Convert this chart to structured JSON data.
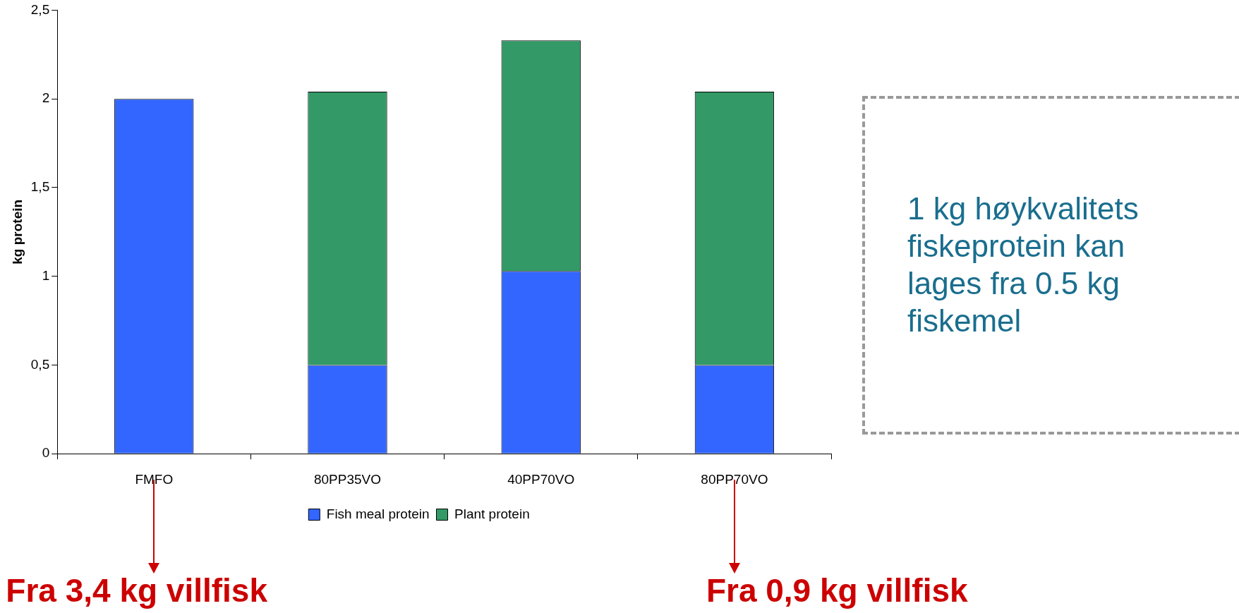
{
  "chart_data": {
    "type": "bar",
    "stacked": true,
    "ylabel": "kg protein",
    "categories": [
      "FMFO",
      "80PP35VO",
      "40PP70VO",
      "80PP70VO"
    ],
    "series": [
      {
        "name": "Fish meal protein",
        "color": "#3366ff",
        "values": [
          2.0,
          0.5,
          1.03,
          0.5
        ]
      },
      {
        "name": "Plant protein",
        "color": "#339966",
        "values": [
          0,
          1.54,
          1.3,
          1.54
        ]
      }
    ],
    "ylim": [
      0,
      2.5
    ],
    "yticks": [
      0,
      {
        "value": 0.5,
        "label": "0,5"
      },
      1,
      {
        "value": 1.5,
        "label": "1,5"
      },
      2,
      {
        "value": 2.5,
        "label": "2,5"
      }
    ],
    "grid": false,
    "legend": "bottom",
    "annotations": [
      "1 kg høykvalitets fiskeprotein kan lages fra 0.5 kg fiskemel",
      "Fra 3,4 kg villfisk",
      "Fra 0,9 kg villfisk"
    ]
  }
}
